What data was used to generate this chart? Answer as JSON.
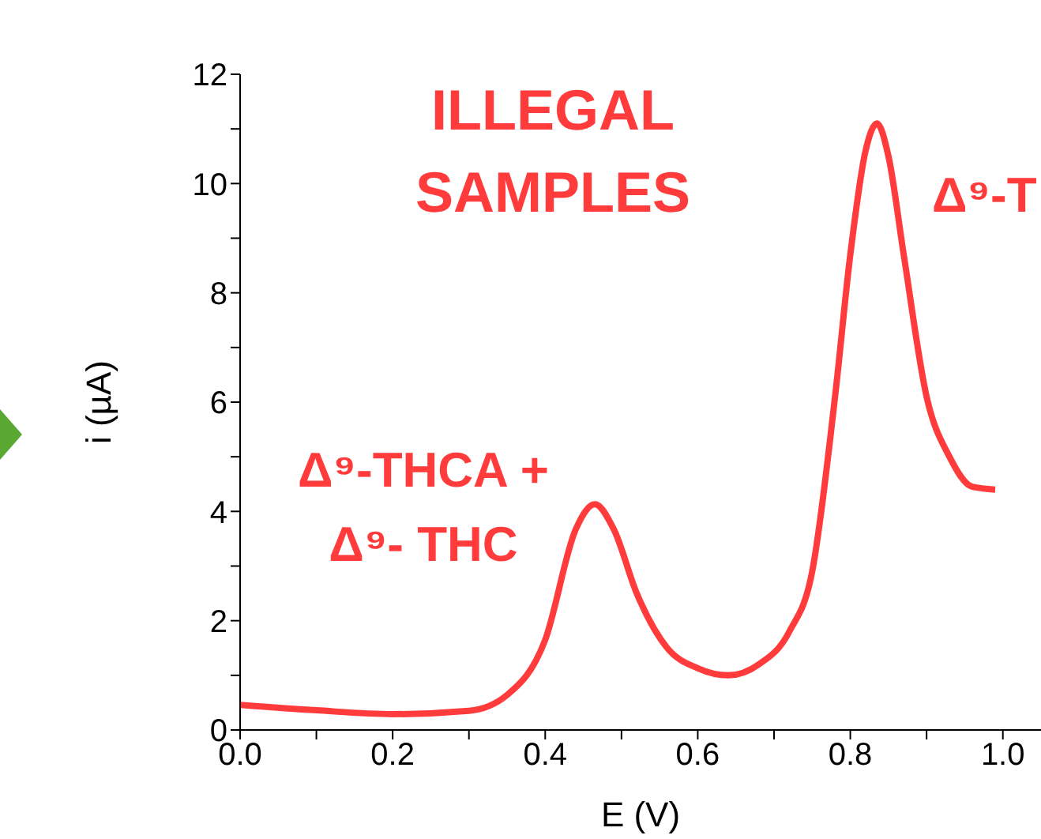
{
  "chart_data": {
    "type": "line",
    "xlabel": "E (V)",
    "ylabel": "i (µA)",
    "annotations": [
      "ILLEGAL\nSAMPLES",
      "Δ⁹-THCA +\nΔ⁹- THC",
      "Δ⁹-T"
    ],
    "xlim": [
      0,
      1.05
    ],
    "xticks": [
      {
        "value": 0,
        "label": "0.0"
      },
      {
        "value": 0.1,
        "label": null
      },
      {
        "value": 0.2,
        "label": "0.2"
      },
      {
        "value": 0.3,
        "label": null
      },
      {
        "value": 0.4,
        "label": "0.4"
      },
      {
        "value": 0.5,
        "label": null
      },
      {
        "value": 0.6,
        "label": "0.6"
      },
      {
        "value": 0.7,
        "label": null
      },
      {
        "value": 0.8,
        "label": "0.8"
      },
      {
        "value": 0.9,
        "label": null
      },
      {
        "value": 1,
        "label": "1.0"
      }
    ],
    "ylim": [
      0,
      12
    ],
    "yticks": [
      0,
      {
        "value": 1,
        "label": null
      },
      2,
      {
        "value": 3,
        "label": null
      },
      4,
      {
        "value": 5,
        "label": null
      },
      6,
      {
        "value": 7,
        "label": null
      },
      8,
      {
        "value": 9,
        "label": null
      },
      10,
      {
        "value": 11,
        "label": null
      },
      12
    ],
    "x": [
      0,
      0.1,
      0.2,
      0.3,
      0.35,
      0.4,
      0.44,
      0.465,
      0.49,
      0.52,
      0.56,
      0.6,
      0.64,
      0.68,
      0.72,
      0.75,
      0.78,
      0.8,
      0.82,
      0.835,
      0.85,
      0.87,
      0.9,
      0.93,
      0.96,
      0.99
    ],
    "series": [
      {
        "color": "#ff3b3b",
        "values": [
          0.46,
          0.36,
          0.29,
          0.35,
          0.64,
          1.65,
          3.67,
          4.13,
          3.67,
          2.5,
          1.5,
          1.13,
          1.0,
          1.2,
          1.8,
          2.9,
          6.1,
          8.7,
          10.6,
          11.1,
          10.5,
          8.7,
          6.1,
          5.0,
          4.45,
          4.4
        ]
      }
    ],
    "grid": false,
    "legend": false,
    "marker": "none",
    "line_style": "solid"
  }
}
